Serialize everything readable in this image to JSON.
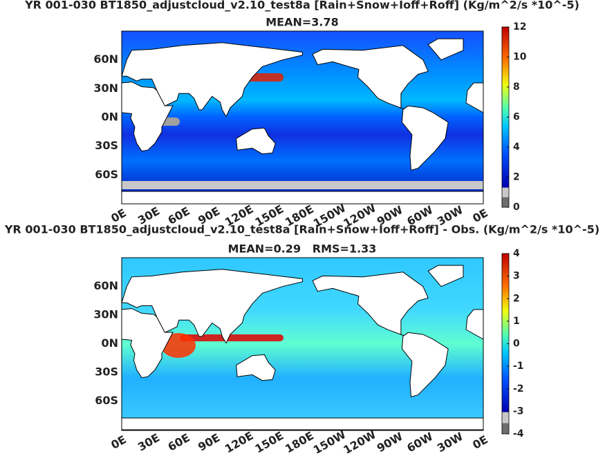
{
  "panels": [
    {
      "title": "YR 001-030 BT1850_adjustcloud_v2.10_test8a [Rain+Snow+Ioff+Roff] (Kg/m^2/s *10^-5)",
      "stats": "MEAN=3.78",
      "lat_labels": [
        "60N",
        "30N",
        "0N",
        "30S",
        "60S"
      ],
      "lon_labels": [
        "0E",
        "30E",
        "60E",
        "90E",
        "120E",
        "150E",
        "180E",
        "150W",
        "120W",
        "90W",
        "60W",
        "30W",
        "0E"
      ],
      "colorbar": {
        "lim": [
          0,
          12
        ],
        "ticks": [
          0,
          2,
          4,
          6,
          8,
          10,
          12
        ]
      }
    },
    {
      "title": "YR 001-030 BT1850_adjustcloud_v2.10_test8a [Rain+Snow+Ioff+Roff] - Obs. (Kg/m^2/s *10^-5)",
      "stats": "MEAN=0.29   RMS=1.33",
      "lat_labels": [
        "60N",
        "30N",
        "0N",
        "30S",
        "60S"
      ],
      "lon_labels": [
        "0E",
        "30E",
        "60E",
        "90E",
        "120E",
        "150E",
        "180E",
        "150W",
        "120W",
        "90W",
        "60W",
        "30W",
        "0E"
      ],
      "colorbar": {
        "lim": [
          -4,
          4
        ],
        "ticks": [
          -4,
          -3,
          -2,
          -1,
          0,
          1,
          2,
          3,
          4
        ]
      }
    }
  ]
}
